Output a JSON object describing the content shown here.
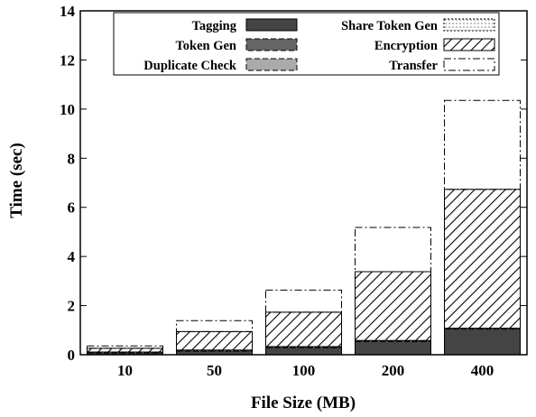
{
  "chart_data": {
    "type": "bar",
    "stacked": true,
    "xlabel": "File Size (MB)",
    "ylabel": "Time (sec)",
    "ylim": [
      0,
      14
    ],
    "yticks": [
      0,
      2,
      4,
      6,
      8,
      10,
      12,
      14
    ],
    "categories": [
      "10",
      "50",
      "100",
      "200",
      "400"
    ],
    "legend_placement": "top, inside plot, two columns",
    "grid": false,
    "series": [
      {
        "name": "Tagging",
        "pattern": "solid-dark",
        "values": [
          0.08,
          0.16,
          0.3,
          0.55,
          1.05
        ]
      },
      {
        "name": "Token Gen",
        "pattern": "solid-medium-dashed",
        "values": [
          0.01,
          0.01,
          0.01,
          0.01,
          0.01
        ]
      },
      {
        "name": "Duplicate Check",
        "pattern": "solid-light-dashed",
        "values": [
          0.01,
          0.01,
          0.01,
          0.01,
          0.01
        ]
      },
      {
        "name": "Share Token Gen",
        "pattern": "dotted",
        "values": [
          0.01,
          0.01,
          0.01,
          0.01,
          0.01
        ]
      },
      {
        "name": "Encryption",
        "pattern": "diagonal-hatch",
        "values": [
          0.15,
          0.75,
          1.4,
          2.8,
          5.65
        ]
      },
      {
        "name": "Transfer",
        "pattern": "dash-dot-outline",
        "values": [
          0.1,
          0.45,
          0.9,
          1.8,
          3.62
        ]
      }
    ],
    "colors": {
      "tagging": "#444444",
      "token_gen": "#666666",
      "duplicate_check": "#aaaaaa",
      "share_token_gen": "#e0e0e0",
      "hatch": "#000000"
    }
  }
}
